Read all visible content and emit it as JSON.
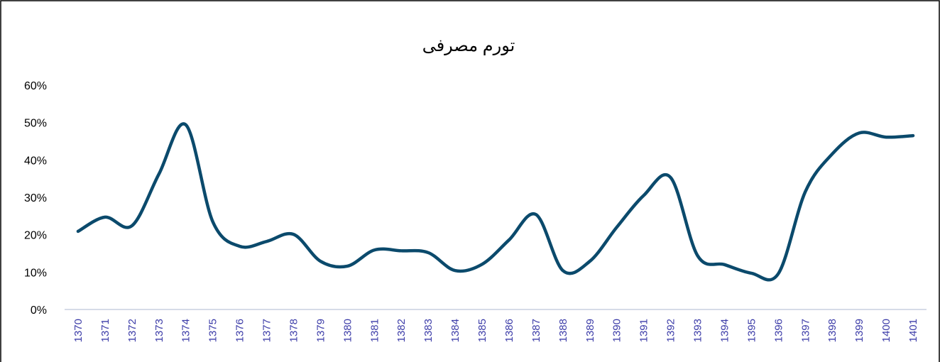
{
  "chart_data": {
    "type": "line",
    "title": "تورم مصرفی",
    "categories": [
      "1370",
      "1371",
      "1372",
      "1373",
      "1374",
      "1375",
      "1376",
      "1377",
      "1378",
      "1379",
      "1380",
      "1381",
      "1382",
      "1383",
      "1384",
      "1385",
      "1386",
      "1387",
      "1388",
      "1389",
      "1390",
      "1391",
      "1392",
      "1393",
      "1394",
      "1395",
      "1396",
      "1397",
      "1398",
      "1399",
      "1400",
      "1401"
    ],
    "series": [
      {
        "name": "تورم مصرفی",
        "color": "#0b4a6c",
        "values": [
          20.9,
          24.7,
          22.4,
          36.2,
          49.4,
          23.5,
          16.9,
          18.2,
          20.1,
          12.9,
          11.6,
          15.9,
          15.7,
          15.2,
          10.4,
          12.1,
          18.6,
          25.4,
          10.4,
          12.9,
          22.0,
          30.5,
          35.3,
          14.4,
          12.0,
          9.7,
          9.6,
          31.5,
          41.6,
          47.2,
          46.1,
          46.5
        ]
      }
    ],
    "ylim": [
      0,
      60
    ],
    "yticks": [
      {
        "value": 0,
        "label": "0%"
      },
      {
        "value": 10,
        "label": "10%"
      },
      {
        "value": 20,
        "label": "20%"
      },
      {
        "value": 30,
        "label": "30%"
      },
      {
        "value": 40,
        "label": "40%"
      },
      {
        "value": 50,
        "label": "50%"
      },
      {
        "value": 60,
        "label": "60%"
      }
    ]
  }
}
